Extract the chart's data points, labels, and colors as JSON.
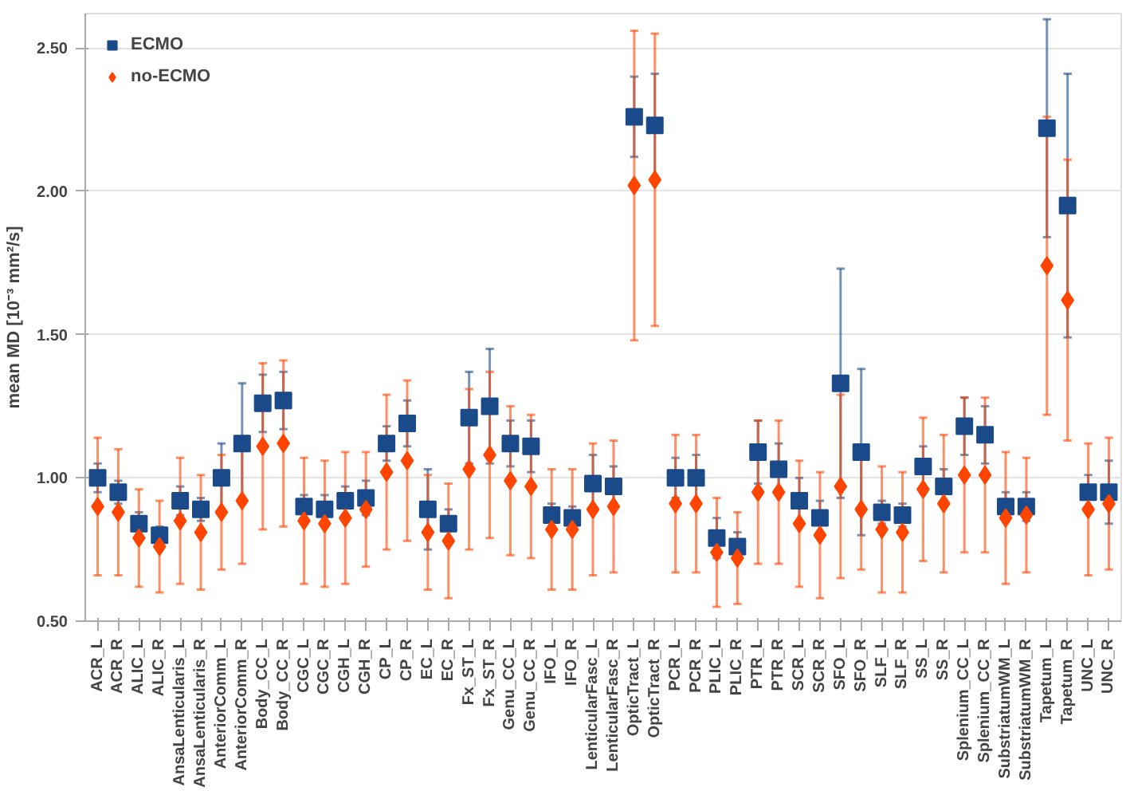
{
  "chart_data": {
    "type": "scatter",
    "ylabel": "mean MD [10⁻³ mm²/s]",
    "categories": [
      "ACR_L",
      "ACR_R",
      "ALIC_L",
      "ALIC_R",
      "AnsaLenticularis_L",
      "AnsaLenticularis_R",
      "AnteriorComm_L",
      "AnteriorComm_R",
      "Body_CC_L",
      "Body_CC_R",
      "CGC_L",
      "CGC_R",
      "CGH_L",
      "CGH_R",
      "CP_L",
      "CP_R",
      "EC_L",
      "EC_R",
      "Fx_ST_L",
      "Fx_ST_R",
      "Genu_CC_L",
      "Genu_CC_R",
      "IFO_L",
      "IFO_R",
      "LenticularFasc_L",
      "LenticularFasc_R",
      "OpticTract_L",
      "OpticTract_R",
      "PCR_L",
      "PCR_R",
      "PLIC_L",
      "PLIC_R",
      "PTR_L",
      "PTR_R",
      "SCR_L",
      "SCR_R",
      "SFO_L",
      "SFO_R",
      "SLF_L",
      "SLF_R",
      "SS_L",
      "SS_R",
      "Splenium_CC_L",
      "Splenium_CC_R",
      "SubstriatumWM_L",
      "SubstriatumWM_R",
      "Tapetum_L",
      "Tapetum_R",
      "UNC_L",
      "UNC_R"
    ],
    "series": [
      {
        "name": "ECMO",
        "color": "#1b4a8a",
        "marker": "square",
        "values": [
          1.0,
          0.95,
          0.84,
          0.8,
          0.92,
          0.89,
          1.0,
          1.12,
          1.26,
          1.27,
          0.9,
          0.89,
          0.92,
          0.93,
          1.12,
          1.19,
          0.89,
          0.84,
          1.21,
          1.25,
          1.12,
          1.11,
          0.87,
          0.86,
          0.98,
          0.97,
          2.26,
          2.23,
          1.0,
          1.0,
          0.79,
          0.76,
          1.09,
          1.03,
          0.92,
          0.86,
          1.33,
          1.09,
          0.88,
          0.87,
          1.04,
          0.97,
          1.18,
          1.15,
          0.9,
          0.9,
          2.22,
          1.95,
          0.95,
          0.95
        ],
        "errors": [
          0.05,
          0.04,
          0.04,
          0.03,
          0.05,
          0.04,
          0.12,
          0.21,
          0.1,
          0.1,
          0.04,
          0.05,
          0.05,
          0.06,
          0.06,
          0.08,
          0.14,
          0.05,
          0.16,
          0.2,
          0.08,
          0.09,
          0.04,
          0.04,
          0.1,
          0.07,
          0.14,
          0.18,
          0.07,
          0.08,
          0.07,
          0.05,
          0.11,
          0.09,
          0.08,
          0.06,
          0.4,
          0.29,
          0.04,
          0.04,
          0.07,
          0.06,
          0.1,
          0.1,
          0.05,
          0.05,
          0.38,
          0.46,
          0.06,
          0.11
        ]
      },
      {
        "name": "no-ECMO",
        "color": "#ff4500",
        "marker": "diamond",
        "values": [
          0.9,
          0.88,
          0.79,
          0.76,
          0.85,
          0.81,
          0.88,
          0.92,
          1.11,
          1.12,
          0.85,
          0.84,
          0.86,
          0.89,
          1.02,
          1.06,
          0.81,
          0.78,
          1.03,
          1.08,
          0.99,
          0.97,
          0.82,
          0.82,
          0.89,
          0.9,
          2.02,
          2.04,
          0.91,
          0.91,
          0.74,
          0.72,
          0.95,
          0.95,
          0.84,
          0.8,
          0.97,
          0.89,
          0.82,
          0.81,
          0.96,
          0.91,
          1.01,
          1.01,
          0.86,
          0.87,
          1.74,
          1.62,
          0.89,
          0.91
        ],
        "errors": [
          0.24,
          0.22,
          0.17,
          0.16,
          0.22,
          0.2,
          0.2,
          0.22,
          0.29,
          0.29,
          0.22,
          0.22,
          0.23,
          0.2,
          0.27,
          0.28,
          0.2,
          0.2,
          0.28,
          0.29,
          0.26,
          0.25,
          0.21,
          0.21,
          0.23,
          0.23,
          0.54,
          0.51,
          0.24,
          0.24,
          0.19,
          0.16,
          0.25,
          0.25,
          0.22,
          0.22,
          0.32,
          0.21,
          0.22,
          0.21,
          0.25,
          0.24,
          0.27,
          0.27,
          0.23,
          0.2,
          0.52,
          0.49,
          0.23,
          0.23
        ]
      }
    ],
    "ylim": [
      0.5,
      2.62
    ],
    "yticks": [
      {
        "value": 0.5,
        "label": "0.50"
      },
      {
        "value": 1.0,
        "label": "1.00"
      },
      {
        "value": 1.5,
        "label": "1.50"
      },
      {
        "value": 2.0,
        "label": "2.00"
      },
      {
        "value": 2.5,
        "label": "2.50"
      }
    ],
    "grid": "y",
    "legend": "top left"
  }
}
